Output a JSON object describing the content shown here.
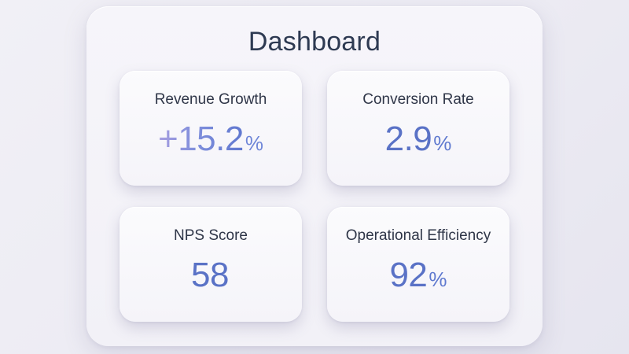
{
  "dashboard": {
    "title": "Dashboard",
    "cards": [
      {
        "label": "Revenue Growth",
        "value": "+15.2",
        "unit": "%"
      },
      {
        "label": "Conversion Rate",
        "value": "2.9",
        "unit": "%"
      },
      {
        "label": "NPS Score",
        "value": "58",
        "unit": ""
      },
      {
        "label": "Operational Efficiency",
        "value": "92",
        "unit": "%"
      }
    ]
  },
  "colors": {
    "title": "#2e3a52",
    "label": "#2f3648",
    "value_blue": "#5a72c6",
    "value_gradient_start": "#a79ee0",
    "value_gradient_end": "#5f77cf"
  }
}
